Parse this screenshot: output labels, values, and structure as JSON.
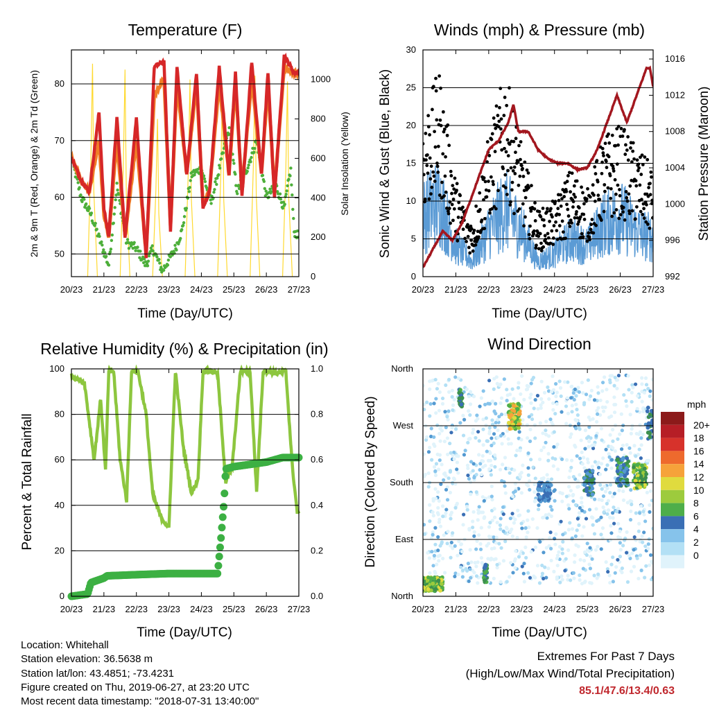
{
  "charts": {
    "temperature": {
      "title": "Temperature (F)",
      "xlabel": "Time (Day/UTC)",
      "ylabel_left": "2m & 9m T (Red, Orange) & 2m Td (Green)",
      "ylabel_right": "Solar Insolation (Yellow)"
    },
    "winds": {
      "title": "Winds (mph) & Pressure (mb)",
      "xlabel": "Time (Day/UTC)",
      "ylabel_left": "Sonic Wind & Gust (Blue, Black)",
      "ylabel_right": "Station Pressure (Maroon)"
    },
    "humidity": {
      "title": "Relative Humidity (%) & Precipitation (in)",
      "xlabel": "Time (Day/UTC)",
      "ylabel_left": "Percent & Total Rainfall"
    },
    "direction": {
      "title": "Wind Direction",
      "xlabel": "Time (Day/UTC)",
      "ylabel_left": "Direction (Colored By Speed)",
      "legend_title": "mph",
      "legend_labels": [
        "20+",
        "18",
        "16",
        "14",
        "12",
        "10",
        "8",
        "6",
        "4",
        "2",
        "0"
      ]
    }
  },
  "footer": {
    "location": "Location: Whitehall",
    "elevation": "Station elevation: 36.5638 m",
    "latlon": "Station lat/lon: 43.4851; -73.4231",
    "created": "Figure created on Thu, 2019-06-27, at 23:20 UTC",
    "recent": "Most recent data timestamp: \"2018-07-31 13:40:00\""
  },
  "extremes": {
    "title": "Extremes For Past 7 Days",
    "subtitle": "(High/Low/Max Wind/Total Precipitation)",
    "values": "85.1/47.6/13.4/0.63"
  },
  "chart_data": [
    {
      "type": "line",
      "title": "Temperature (F)",
      "xlabel": "Time (Day/UTC)",
      "ylabel": "2m & 9m T (Red, Orange) & 2m Td (Green)",
      "y2label": "Solar Insolation (Yellow)",
      "x_ticks": [
        "20/23",
        "21/23",
        "22/23",
        "23/23",
        "24/23",
        "25/23",
        "26/23",
        "27/23"
      ],
      "ylim": [
        46,
        86
      ],
      "y_ticks": [
        50,
        60,
        70,
        80
      ],
      "y2lim": [
        0,
        1150
      ],
      "y2_ticks": [
        0,
        200,
        400,
        600,
        800,
        1000
      ],
      "grid": true,
      "colors": {
        "temp2m": "#d62728",
        "temp9m": "#f07e26",
        "dew": "#4daf3a",
        "solar": "#ffd92f"
      },
      "series": [
        {
          "x": [
            0,
            0.3,
            0.55,
            0.85,
            1.0,
            1.15,
            1.4,
            1.65,
            2.0,
            2.3,
            2.55,
            2.85,
            3.05,
            3.25,
            3.55,
            3.85,
            4.05,
            4.25,
            4.55,
            4.85,
            5.05,
            5.25,
            5.55,
            5.85,
            6.05,
            6.25,
            6.55,
            6.85,
            7.0
          ],
          "values": [
            67,
            63,
            61,
            75,
            58,
            53,
            74,
            53,
            74,
            49,
            83,
            84,
            54,
            83,
            64,
            82,
            58,
            61,
            83,
            64,
            82,
            60,
            84,
            64,
            82,
            60,
            85,
            82,
            82
          ]
        },
        {
          "x": [
            0,
            0.3,
            0.55,
            0.85,
            1.0,
            1.15,
            1.4,
            1.65,
            2.0,
            2.3,
            2.55,
            2.85,
            3.05,
            3.25,
            3.55,
            3.85,
            4.05,
            4.25,
            4.55,
            4.85,
            5.05,
            5.25,
            5.55,
            5.85,
            6.05,
            6.25,
            6.55,
            6.85,
            7.0
          ],
          "values": [
            67,
            63,
            61,
            70,
            57,
            53,
            70,
            53,
            70,
            50,
            78,
            81,
            55,
            80,
            64,
            80,
            59,
            61,
            80,
            64,
            80,
            61,
            81,
            64,
            80,
            61,
            83,
            82,
            82
          ]
        },
        {
          "x": [
            0,
            0.3,
            0.6,
            0.9,
            1.15,
            1.4,
            1.7,
            2.0,
            2.3,
            2.5,
            2.8,
            3.0,
            3.2,
            3.4,
            3.7,
            4.0,
            4.3,
            4.55,
            4.85,
            5.1,
            5.4,
            5.7,
            6.0,
            6.3,
            6.55,
            6.75,
            6.85,
            7.0
          ],
          "values": [
            67,
            60,
            57,
            52,
            48,
            62,
            52,
            51,
            48,
            51,
            47,
            49,
            51,
            54,
            64,
            65,
            59,
            65,
            72,
            61,
            65,
            70,
            60,
            62,
            58,
            65,
            54,
            53
          ]
        },
        {
          "x": [
            0.5,
            0.65,
            0.8,
            1.5,
            1.65,
            1.8,
            2.5,
            2.65,
            2.8,
            3.5,
            3.65,
            3.8,
            4.5,
            4.65,
            4.8,
            5.5,
            5.65,
            5.8,
            6.5,
            6.65,
            6.8
          ],
          "values": [
            0,
            1080,
            0,
            0,
            1050,
            0,
            0,
            800,
            0,
            0,
            1000,
            0,
            0,
            960,
            0,
            0,
            1020,
            0,
            0,
            990,
            0
          ]
        }
      ]
    },
    {
      "type": "line",
      "title": "Winds (mph) & Pressure (mb)",
      "xlabel": "Time (Day/UTC)",
      "ylabel": "Sonic Wind & Gust (Blue, Black)",
      "y2label": "Station Pressure (Maroon)",
      "x_ticks": [
        "20/23",
        "21/23",
        "22/23",
        "23/23",
        "24/23",
        "25/23",
        "26/23",
        "27/23"
      ],
      "ylim": [
        0,
        30
      ],
      "y_ticks": [
        0,
        5,
        10,
        15,
        20,
        25,
        30
      ],
      "y2lim": [
        992,
        1017
      ],
      "y2_ticks": [
        992,
        996,
        1000,
        1004,
        1008,
        1012,
        1016
      ],
      "grid": true,
      "colors": {
        "wind": "#5b9bd5",
        "gust": "#000000",
        "pressure": "#a3171f"
      },
      "series": [
        {
          "x": [
            0,
            0.5,
            1.0,
            1.5,
            2.0,
            2.5,
            3.0,
            3.5,
            4.0,
            4.5,
            5.0,
            5.5,
            6.0,
            6.5,
            7.0
          ],
          "values": [
            8,
            10,
            4,
            2,
            6,
            9,
            6,
            2,
            3,
            5,
            4,
            7,
            8,
            6,
            5
          ]
        },
        {
          "x": [
            0,
            0.5,
            1.0,
            1.5,
            2.0,
            2.5,
            3.0,
            3.5,
            4.0,
            4.5,
            5.0,
            5.5,
            6.0,
            6.5,
            7.0
          ],
          "values": [
            15,
            19,
            9,
            5,
            13,
            19,
            12,
            6,
            7,
            10,
            8,
            13,
            14,
            12,
            10
          ]
        },
        {
          "x": [
            0,
            0.3,
            0.6,
            0.9,
            1.2,
            1.5,
            1.8,
            2.0,
            2.3,
            2.6,
            2.75,
            2.9,
            3.2,
            3.5,
            3.8,
            4.1,
            4.4,
            4.7,
            5.0,
            5.3,
            5.6,
            5.9,
            6.2,
            6.5,
            6.8,
            6.9,
            7.0
          ],
          "values": [
            993,
            995,
            997,
            996,
            998,
            1001,
            1004,
            1006,
            1007,
            1009,
            1011,
            1008,
            1008,
            1006,
            1005,
            1004.5,
            1004.5,
            1003.8,
            1004,
            1006,
            1009,
            1012,
            1009,
            1012,
            1015,
            1015,
            1013
          ]
        }
      ]
    },
    {
      "type": "line",
      "title": "Relative Humidity (%) & Precipitation (in)",
      "xlabel": "Time (Day/UTC)",
      "ylabel": "Percent & Total Rainfall",
      "x_ticks": [
        "20/23",
        "21/23",
        "22/23",
        "23/23",
        "24/23",
        "25/23",
        "26/23",
        "27/23"
      ],
      "ylim": [
        0,
        100
      ],
      "y_ticks": [
        0,
        20,
        40,
        60,
        80,
        100
      ],
      "y2lim": [
        0,
        1
      ],
      "y2_ticks": [
        0.0,
        0.2,
        0.4,
        0.6,
        0.8,
        1.0
      ],
      "grid": true,
      "colors": {
        "rh": "#8dc63f",
        "rain": "#3cb043"
      },
      "series": [
        {
          "x": [
            0,
            0.4,
            0.7,
            0.9,
            1.05,
            1.15,
            1.3,
            1.5,
            1.7,
            1.85,
            2.05,
            2.3,
            2.5,
            2.75,
            3.0,
            3.2,
            3.45,
            3.7,
            3.9,
            4.05,
            4.3,
            4.5,
            4.75,
            4.95,
            5.2,
            5.5,
            5.7,
            5.9,
            6.1,
            6.3,
            6.6,
            6.8,
            6.95,
            7.0
          ],
          "values": [
            97,
            94,
            60,
            87,
            55,
            99,
            99,
            60,
            42,
            99,
            99,
            80,
            45,
            35,
            30,
            99,
            65,
            45,
            52,
            99,
            99,
            98,
            50,
            57,
            99,
            99,
            46,
            99,
            99,
            98,
            99,
            57,
            37,
            36
          ]
        },
        {
          "x": [
            0,
            0.5,
            0.6,
            1.0,
            1.1,
            2.0,
            3.0,
            4.0,
            4.5,
            4.6,
            4.7,
            4.75,
            5.0,
            5.5,
            6.0,
            6.5,
            7.0
          ],
          "values": [
            0.0,
            0.01,
            0.06,
            0.08,
            0.09,
            0.095,
            0.1,
            0.1,
            0.1,
            0.25,
            0.42,
            0.56,
            0.57,
            0.58,
            0.59,
            0.61,
            0.61
          ]
        }
      ]
    },
    {
      "type": "scatter",
      "title": "Wind Direction",
      "xlabel": "Time (Day/UTC)",
      "ylabel": "Direction (Colored By Speed)",
      "x_ticks": [
        "20/23",
        "21/23",
        "22/23",
        "23/23",
        "24/23",
        "25/23",
        "26/23",
        "27/23"
      ],
      "y_ticks": [
        "North",
        "East",
        "South",
        "West",
        "North"
      ],
      "ylim": [
        0,
        360
      ],
      "legend": {
        "title": "mph",
        "labels": [
          "20+",
          "18",
          "16",
          "14",
          "12",
          "10",
          "8",
          "6",
          "4",
          "2",
          "0"
        ],
        "placement": "right"
      },
      "grid": true,
      "colors": [
        "#e0f3fb",
        "#b3e0f5",
        "#86c3eb",
        "#5399d1",
        "#3a6fb5",
        "#3c8f4e",
        "#4eae4a",
        "#9dcb3d",
        "#e0db3e",
        "#f6a23a",
        "#ee6a2d",
        "#d7322b",
        "#b61e26",
        "#8c1a1a"
      ]
    }
  ]
}
